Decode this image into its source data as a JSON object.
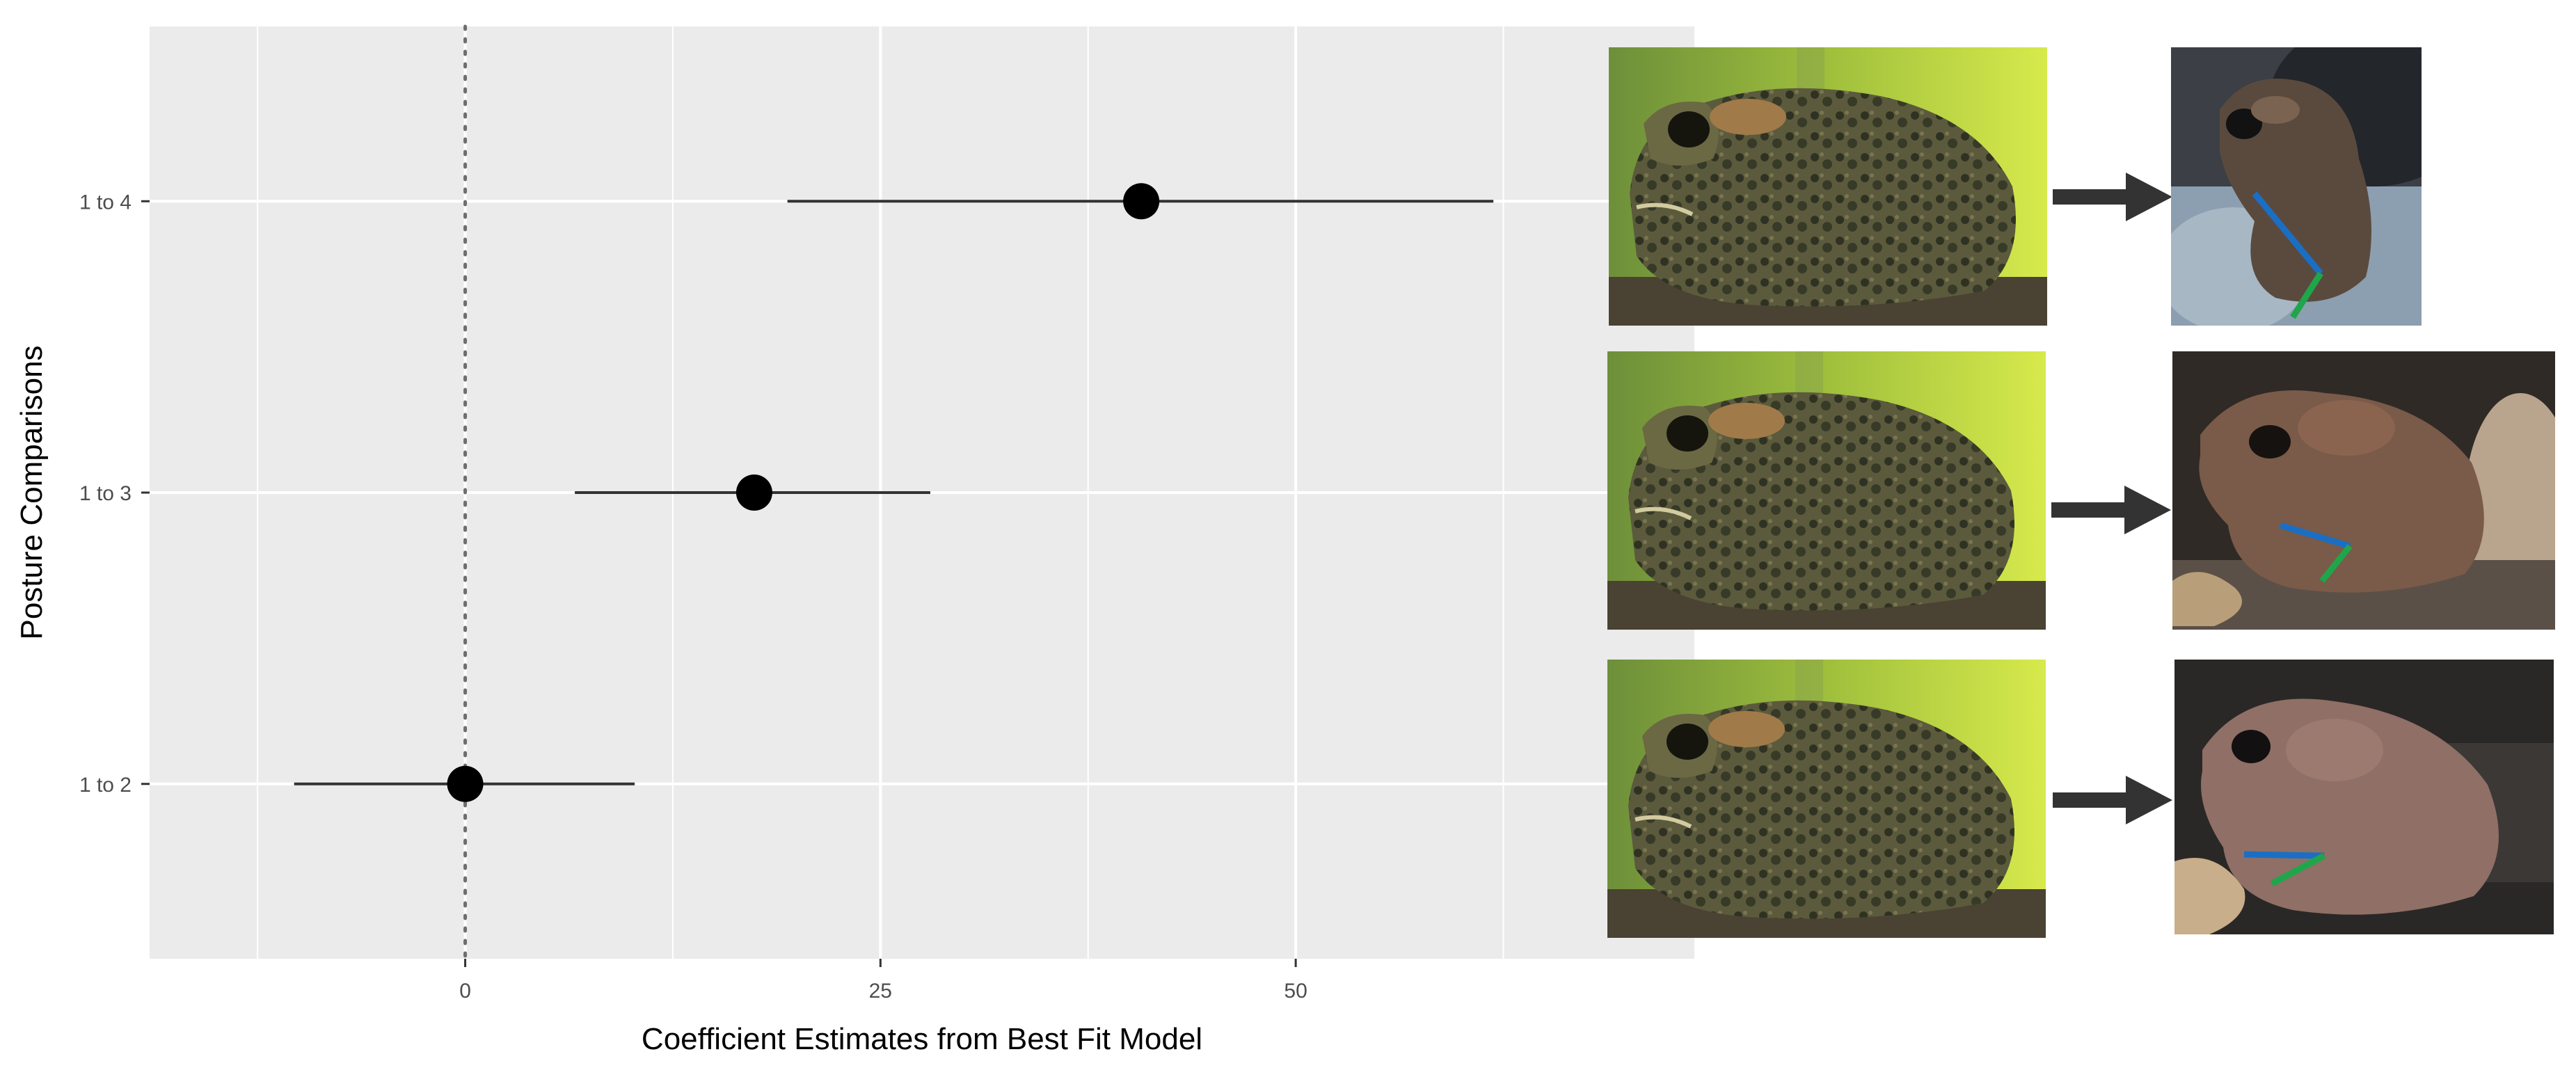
{
  "chart_data": {
    "type": "scatter",
    "xlabel": "Coefficient Estimates from Best Fit Model",
    "ylabel": "Posture Comparisons",
    "categories": [
      "1 to 2",
      "1 to 3",
      "1 to 4"
    ],
    "x_ticks": [
      0,
      25,
      50
    ],
    "xlim": [
      -19,
      74
    ],
    "grid": true,
    "reference_line": 0,
    "points": [
      {
        "category": "1 to 2",
        "estimate": 0,
        "lower": -10.3,
        "upper": 10.2
      },
      {
        "category": "1 to 3",
        "estimate": 17.4,
        "lower": 6.6,
        "upper": 28.0
      },
      {
        "category": "1 to 4",
        "estimate": 40.7,
        "lower": 19.4,
        "upper": 61.9
      }
    ]
  },
  "colors": {
    "panel": "#ebebeb",
    "grid": "#ffffff",
    "point": "#000000",
    "error_bar": "#333333",
    "reference_line": "#6e6e6e",
    "leg_line_upper": "#1a6fc4",
    "leg_line_lower": "#1fa64a",
    "arrow": "#333333"
  },
  "illustrations": [
    {
      "row": "1 to 4",
      "from": "toad-crouched-photo",
      "to": "toad-posture-4-photo"
    },
    {
      "row": "1 to 3",
      "from": "toad-crouched-photo",
      "to": "toad-posture-3-photo"
    },
    {
      "row": "1 to 2",
      "from": "toad-crouched-photo",
      "to": "toad-posture-2-photo"
    }
  ]
}
